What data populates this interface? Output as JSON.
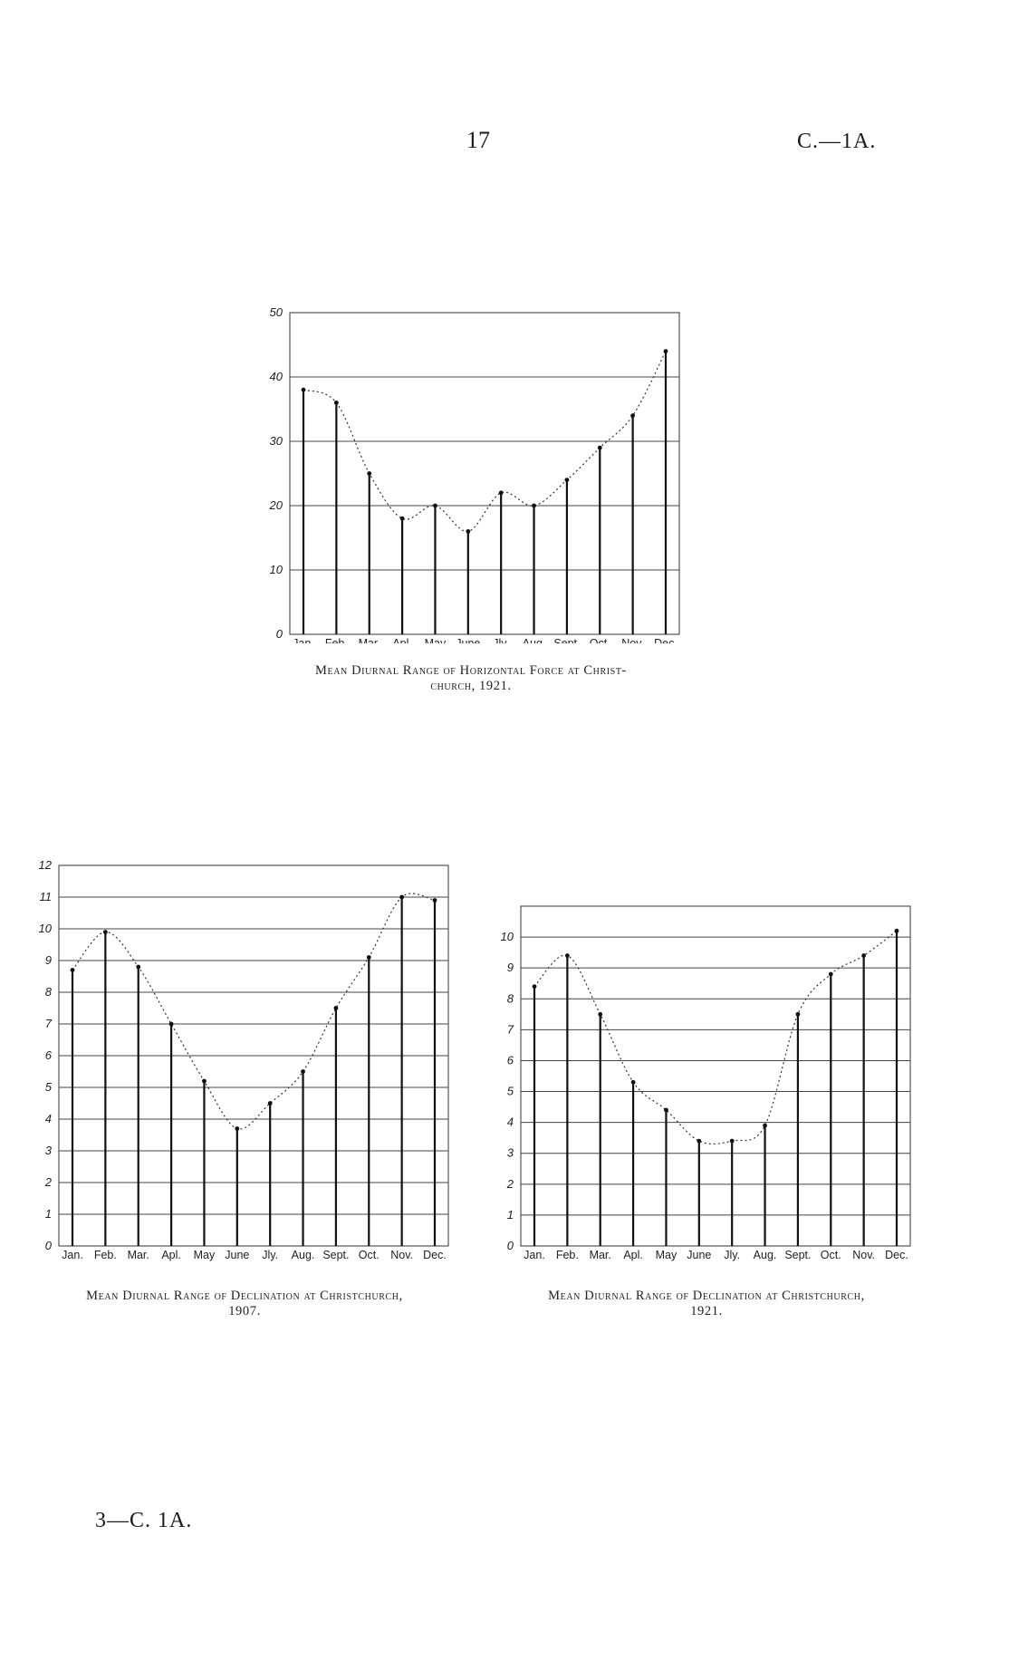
{
  "header": {
    "page_number": "17",
    "document_code": "C.—1A."
  },
  "footer": {
    "signature": "3—C. 1A."
  },
  "chart_data": [
    {
      "id": "horizontal-force-1921",
      "type": "bar",
      "categories": [
        "Jan.",
        "Feb.",
        "Mar.",
        "Apl.",
        "May",
        "June",
        "Jly.",
        "Aug.",
        "Sept.",
        "Oct.",
        "Nov.",
        "Dec."
      ],
      "values": [
        38,
        36,
        25,
        18,
        20,
        16,
        22,
        20,
        24,
        29,
        34,
        44
      ],
      "ylim": [
        0,
        50
      ],
      "yticks": [
        "0",
        "10",
        "20",
        "30",
        "40",
        "50"
      ],
      "title": "Mean Diurnal Range of Horizontal Force at Christ-",
      "title_line2": "church,",
      "year": "1921.",
      "grid": true
    },
    {
      "id": "declination-1907",
      "type": "bar",
      "categories": [
        "Jan.",
        "Feb.",
        "Mar.",
        "Apl.",
        "May",
        "June",
        "Jly.",
        "Aug.",
        "Sept.",
        "Oct.",
        "Nov.",
        "Dec."
      ],
      "values": [
        8.7,
        9.9,
        8.8,
        7.0,
        5.2,
        3.7,
        4.5,
        5.5,
        7.5,
        9.1,
        11.0,
        10.9
      ],
      "ylim": [
        0,
        12
      ],
      "yticks": [
        "0",
        "1",
        "2",
        "3",
        "4",
        "5",
        "6",
        "7",
        "8",
        "9",
        "10",
        "11",
        "12"
      ],
      "title": "Mean Diurnal Range of Declination at Christchurch,",
      "year": "1907.",
      "grid": true
    },
    {
      "id": "declination-1921",
      "type": "bar",
      "categories": [
        "Jan.",
        "Feb.",
        "Mar.",
        "Apl.",
        "May",
        "June",
        "Jly.",
        "Aug.",
        "Sept.",
        "Oct.",
        "Nov.",
        "Dec."
      ],
      "values": [
        8.4,
        9.4,
        7.5,
        5.3,
        4.4,
        3.4,
        3.4,
        3.9,
        7.5,
        8.8,
        9.4,
        10.2
      ],
      "ylim": [
        0,
        11
      ],
      "yticks": [
        "0",
        "1",
        "2",
        "3",
        "4",
        "5",
        "6",
        "7",
        "8",
        "9",
        "10"
      ],
      "title": "Mean Diurnal Range of Declination at Christchurch,",
      "year": "1921.",
      "grid": true
    }
  ]
}
